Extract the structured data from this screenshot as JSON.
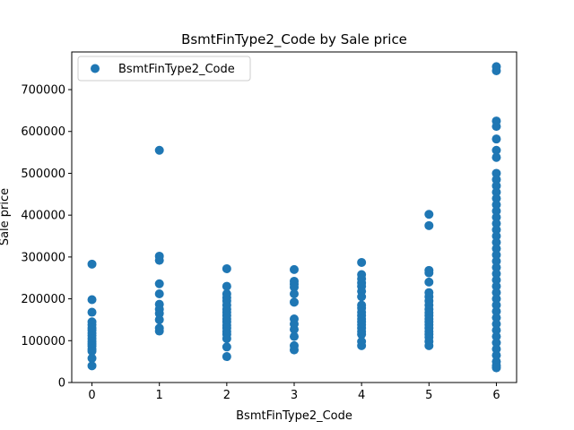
{
  "chart_data": {
    "type": "scatter",
    "title": "BsmtFinType2_Code by Sale price",
    "xlabel": "BsmtFinType2_Code",
    "ylabel": "Sale price",
    "xlim": [
      -0.3,
      6.3
    ],
    "ylim": [
      0,
      790000
    ],
    "x_ticks": [
      0,
      1,
      2,
      3,
      4,
      5,
      6
    ],
    "y_ticks": [
      0,
      100000,
      200000,
      300000,
      400000,
      500000,
      600000,
      700000
    ],
    "grid": false,
    "legend_position": "top-left",
    "marker_color": "#1f77b4",
    "series": [
      {
        "name": "BsmtFinType2_Code",
        "points": [
          [
            0,
            283000
          ],
          [
            0,
            198000
          ],
          [
            0,
            168000
          ],
          [
            0,
            145000
          ],
          [
            0,
            138000
          ],
          [
            0,
            130000
          ],
          [
            0,
            125000
          ],
          [
            0,
            118000
          ],
          [
            0,
            112000
          ],
          [
            0,
            105000
          ],
          [
            0,
            98000
          ],
          [
            0,
            92000
          ],
          [
            0,
            87000
          ],
          [
            0,
            80000
          ],
          [
            0,
            75000
          ],
          [
            0,
            58000
          ],
          [
            0,
            40000
          ],
          [
            1,
            555000
          ],
          [
            1,
            302000
          ],
          [
            1,
            292000
          ],
          [
            1,
            236000
          ],
          [
            1,
            212000
          ],
          [
            1,
            187000
          ],
          [
            1,
            175000
          ],
          [
            1,
            165000
          ],
          [
            1,
            150000
          ],
          [
            1,
            130000
          ],
          [
            1,
            123000
          ],
          [
            2,
            272000
          ],
          [
            2,
            230000
          ],
          [
            2,
            212000
          ],
          [
            2,
            203000
          ],
          [
            2,
            195000
          ],
          [
            2,
            185000
          ],
          [
            2,
            175000
          ],
          [
            2,
            168000
          ],
          [
            2,
            160000
          ],
          [
            2,
            152000
          ],
          [
            2,
            145000
          ],
          [
            2,
            137000
          ],
          [
            2,
            130000
          ],
          [
            2,
            122000
          ],
          [
            2,
            115000
          ],
          [
            2,
            105000
          ],
          [
            2,
            85000
          ],
          [
            2,
            62000
          ],
          [
            3,
            270000
          ],
          [
            3,
            242000
          ],
          [
            3,
            235000
          ],
          [
            3,
            228000
          ],
          [
            3,
            212000
          ],
          [
            3,
            192000
          ],
          [
            3,
            152000
          ],
          [
            3,
            140000
          ],
          [
            3,
            127000
          ],
          [
            3,
            110000
          ],
          [
            3,
            88000
          ],
          [
            3,
            78000
          ],
          [
            4,
            287000
          ],
          [
            4,
            258000
          ],
          [
            4,
            248000
          ],
          [
            4,
            238000
          ],
          [
            4,
            230000
          ],
          [
            4,
            218000
          ],
          [
            4,
            205000
          ],
          [
            4,
            185000
          ],
          [
            4,
            178000
          ],
          [
            4,
            168000
          ],
          [
            4,
            160000
          ],
          [
            4,
            152000
          ],
          [
            4,
            145000
          ],
          [
            4,
            138000
          ],
          [
            4,
            130000
          ],
          [
            4,
            122000
          ],
          [
            4,
            115000
          ],
          [
            4,
            98000
          ],
          [
            4,
            88000
          ],
          [
            5,
            402000
          ],
          [
            5,
            375000
          ],
          [
            5,
            268000
          ],
          [
            5,
            262000
          ],
          [
            5,
            240000
          ],
          [
            5,
            215000
          ],
          [
            5,
            205000
          ],
          [
            5,
            195000
          ],
          [
            5,
            185000
          ],
          [
            5,
            175000
          ],
          [
            5,
            167000
          ],
          [
            5,
            160000
          ],
          [
            5,
            152000
          ],
          [
            5,
            145000
          ],
          [
            5,
            138000
          ],
          [
            5,
            130000
          ],
          [
            5,
            122000
          ],
          [
            5,
            115000
          ],
          [
            5,
            108000
          ],
          [
            5,
            98000
          ],
          [
            5,
            88000
          ],
          [
            6,
            755000
          ],
          [
            6,
            745000
          ],
          [
            6,
            625000
          ],
          [
            6,
            612000
          ],
          [
            6,
            582000
          ],
          [
            6,
            555000
          ],
          [
            6,
            538000
          ],
          [
            6,
            500000
          ],
          [
            6,
            485000
          ],
          [
            6,
            470000
          ],
          [
            6,
            455000
          ],
          [
            6,
            440000
          ],
          [
            6,
            425000
          ],
          [
            6,
            410000
          ],
          [
            6,
            395000
          ],
          [
            6,
            380000
          ],
          [
            6,
            365000
          ],
          [
            6,
            350000
          ],
          [
            6,
            335000
          ],
          [
            6,
            320000
          ],
          [
            6,
            305000
          ],
          [
            6,
            290000
          ],
          [
            6,
            275000
          ],
          [
            6,
            260000
          ],
          [
            6,
            245000
          ],
          [
            6,
            230000
          ],
          [
            6,
            215000
          ],
          [
            6,
            200000
          ],
          [
            6,
            185000
          ],
          [
            6,
            170000
          ],
          [
            6,
            155000
          ],
          [
            6,
            140000
          ],
          [
            6,
            125000
          ],
          [
            6,
            110000
          ],
          [
            6,
            95000
          ],
          [
            6,
            80000
          ],
          [
            6,
            65000
          ],
          [
            6,
            50000
          ],
          [
            6,
            40000
          ],
          [
            6,
            35000
          ]
        ]
      }
    ]
  }
}
